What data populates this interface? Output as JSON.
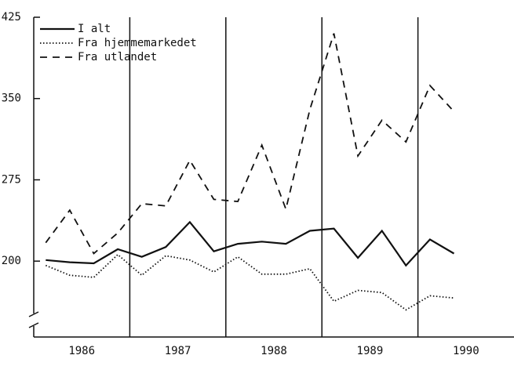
{
  "chart_data": {
    "type": "line",
    "x": [
      1986.125,
      1986.375,
      1986.625,
      1986.875,
      1987.125,
      1987.375,
      1987.625,
      1987.875,
      1988.125,
      1988.375,
      1988.625,
      1988.875,
      1989.125,
      1989.375,
      1989.625,
      1989.875,
      1990.125,
      1990.375
    ],
    "series": [
      {
        "name": "I alt",
        "color": "#111111",
        "dash": "solid",
        "values": [
          201,
          199,
          198,
          211,
          204,
          213,
          236,
          209,
          216,
          218,
          216,
          228,
          230,
          203,
          228,
          196,
          220,
          207
        ]
      },
      {
        "name": "Fra hjemmemarkedet",
        "color": "#111111",
        "dash": "dotted",
        "values": [
          196,
          187,
          185,
          206,
          187,
          205,
          201,
          190,
          204,
          188,
          188,
          193,
          163,
          173,
          171,
          155,
          168,
          166
        ]
      },
      {
        "name": "Fra utlandet",
        "color": "#111111",
        "dash": "dashed",
        "values": [
          217,
          247,
          207,
          226,
          253,
          251,
          293,
          257,
          255,
          307,
          248,
          340,
          410,
          297,
          330,
          310,
          362,
          338
        ]
      }
    ],
    "xlim": [
      1986,
      1991
    ],
    "xticks": [
      {
        "value": 1986.5,
        "label": "1986"
      },
      {
        "value": 1987.5,
        "label": "1987"
      },
      {
        "value": 1988.5,
        "label": "1988"
      },
      {
        "value": 1989.5,
        "label": "1989"
      },
      {
        "value": 1990.5,
        "label": "1990"
      }
    ],
    "vlines": [
      1987,
      1988,
      1989,
      1990
    ],
    "ylim": [
      130,
      425
    ],
    "yticks": [
      200,
      275,
      350,
      425
    ],
    "legend": "upper left"
  }
}
